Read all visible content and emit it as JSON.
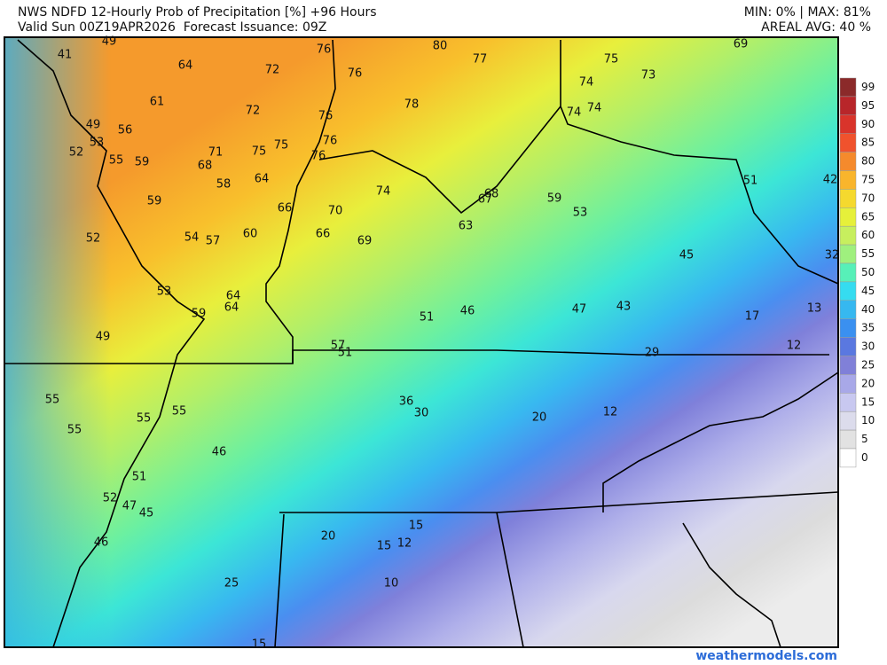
{
  "header": {
    "title": "NWS NDFD 12-Hourly Prob of Precipitation [%] +96 Hours",
    "valid": "Valid Sun 00Z19APR2026  Forecast Issuance: 09Z",
    "stats": "MIN: 0% | MAX: 81%",
    "areal": "AREAL AVG: 40 %"
  },
  "map": {
    "labels": [
      49,
      41,
      64,
      72,
      76,
      80,
      77,
      75,
      69,
      76,
      73,
      74,
      61,
      72,
      78,
      76,
      74,
      74,
      49,
      56,
      53,
      76,
      52,
      71,
      75,
      75,
      76,
      55,
      59,
      68,
      64,
      51,
      42,
      58,
      74,
      68,
      67,
      59,
      59,
      66,
      70,
      53,
      52,
      54,
      57,
      60,
      66,
      69,
      63,
      45,
      32,
      53,
      64,
      64,
      59,
      51,
      46,
      47,
      43,
      17,
      13,
      49,
      57,
      51,
      12,
      29,
      55,
      36,
      30,
      20,
      12,
      55,
      55,
      55,
      46,
      51,
      52,
      47,
      45,
      46,
      20,
      15,
      15,
      12,
      10,
      25,
      15
    ]
  },
  "legend": {
    "ticks": [
      99,
      95,
      90,
      85,
      80,
      75,
      70,
      65,
      60,
      55,
      50,
      45,
      40,
      35,
      30,
      25,
      20,
      15,
      10,
      5,
      0
    ]
  },
  "footer": {
    "credit": "weathermodels.com"
  }
}
